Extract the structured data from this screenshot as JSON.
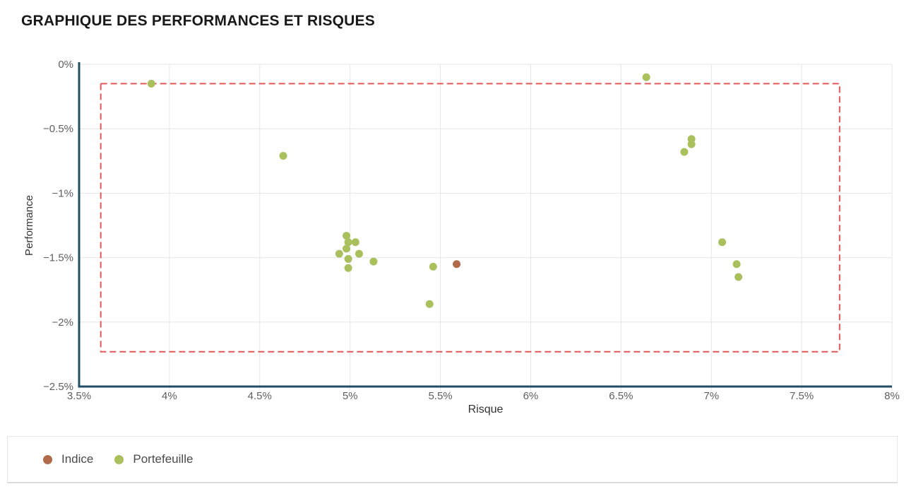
{
  "page": {
    "title": "GRAPHIQUE DES PERFORMANCES ET RISQUES"
  },
  "colors": {
    "axis_line": "#1f4e66",
    "grid_line": "#e6e6e6",
    "tick_text": "#5f5f5f",
    "axis_title_text": "#333333",
    "title_text": "#191919"
  },
  "chart_data": {
    "type": "scatter",
    "title": "GRAPHIQUE DES PERFORMANCES ET RISQUES",
    "xlabel": "Risque",
    "ylabel": "Performance",
    "xlim": [
      3.5,
      8.0
    ],
    "ylim": [
      -2.5,
      0
    ],
    "grid": true,
    "legend_position": "bottom",
    "x_ticks": [
      3.5,
      4,
      4.5,
      5,
      5.5,
      6,
      6.5,
      7,
      7.5,
      8
    ],
    "x_tick_labels": [
      "3.5%",
      "4%",
      "4.5%",
      "5%",
      "5.5%",
      "6%",
      "6.5%",
      "7%",
      "7.5%",
      "8%"
    ],
    "y_ticks": [
      0,
      -0.5,
      -1,
      -1.5,
      -2,
      -2.5
    ],
    "y_tick_labels": [
      "0%",
      "−0.5%",
      "−1%",
      "−1.5%",
      "−2%",
      "−2.5%"
    ],
    "series": [
      {
        "name": "Indice",
        "color": "#b26b4a",
        "points": [
          [
            5.59,
            -1.55
          ]
        ]
      },
      {
        "name": "Portefeuille",
        "color": "#a9c05d",
        "points": [
          [
            3.9,
            -0.15
          ],
          [
            4.63,
            -0.71
          ],
          [
            4.98,
            -1.33
          ],
          [
            4.99,
            -1.38
          ],
          [
            5.03,
            -1.38
          ],
          [
            4.98,
            -1.43
          ],
          [
            4.94,
            -1.47
          ],
          [
            5.05,
            -1.47
          ],
          [
            4.99,
            -1.51
          ],
          [
            5.13,
            -1.53
          ],
          [
            4.99,
            -1.58
          ],
          [
            5.46,
            -1.57
          ],
          [
            5.44,
            -1.86
          ],
          [
            6.64,
            -0.1
          ],
          [
            6.89,
            -0.58
          ],
          [
            6.89,
            -0.62
          ],
          [
            6.85,
            -0.68
          ],
          [
            7.06,
            -1.38
          ],
          [
            7.14,
            -1.55
          ],
          [
            7.15,
            -1.65
          ]
        ]
      }
    ],
    "bounds_box": {
      "x1": 3.62,
      "x2": 7.71,
      "y1": -0.15,
      "y2": -2.23,
      "color": "#e25757",
      "style": "dashed"
    }
  },
  "legend": {
    "items": [
      {
        "label": "Indice",
        "color": "#b26b4a"
      },
      {
        "label": "Portefeuille",
        "color": "#a9c05d"
      }
    ]
  }
}
